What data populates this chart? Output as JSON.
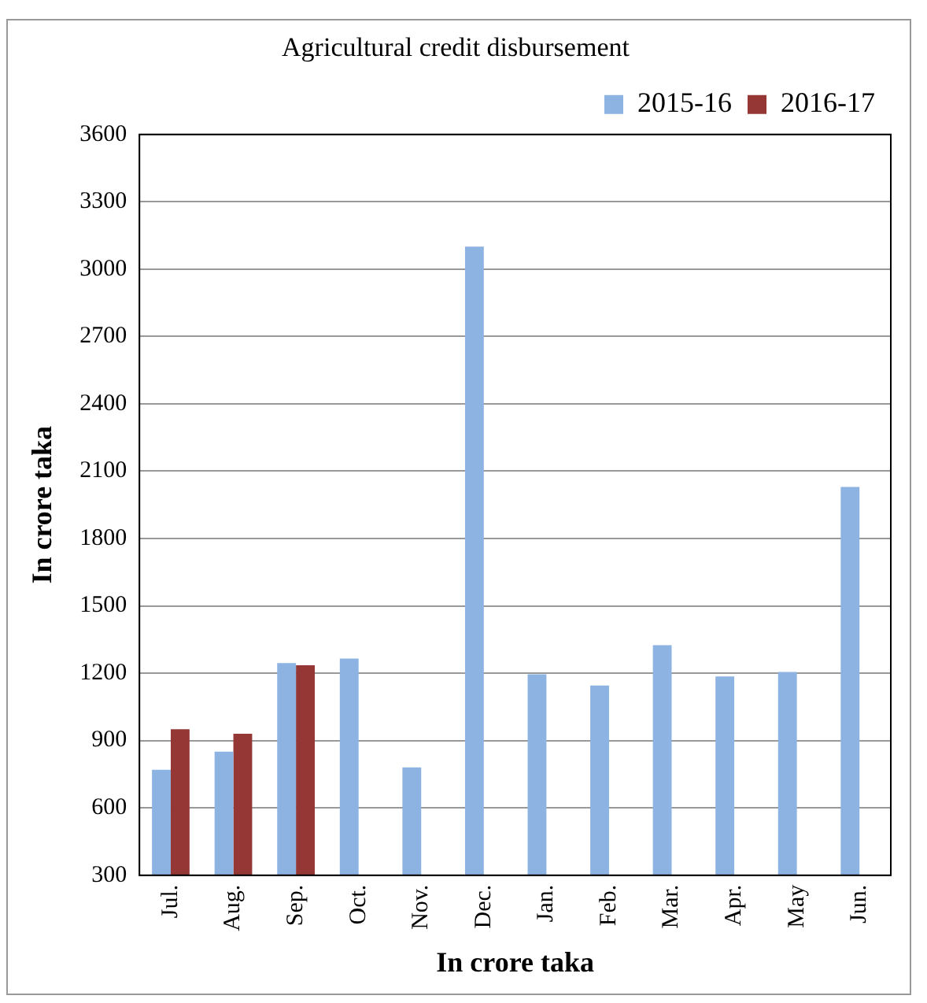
{
  "chart_data": {
    "type": "bar",
    "title": "Agricultural credit disbursement",
    "xlabel": "In crore taka",
    "ylabel": "In crore taka",
    "categories": [
      "Jul.",
      "Aug.",
      "Sep.",
      "Oct.",
      "Nov.",
      "Dec.",
      "Jan.",
      "Feb.",
      "Mar.",
      "Apr.",
      "May",
      "Jun."
    ],
    "series": [
      {
        "name": "2015-16",
        "color": "#8db3e2",
        "values": [
          770,
          850,
          1245,
          1265,
          780,
          3100,
          1195,
          1145,
          1325,
          1185,
          1205,
          2030
        ]
      },
      {
        "name": "2016-17",
        "color": "#953735",
        "values": [
          950,
          930,
          1235,
          null,
          null,
          null,
          null,
          null,
          null,
          null,
          null,
          null
        ]
      }
    ],
    "ylim": [
      300,
      3600
    ],
    "yticks": [
      300,
      600,
      900,
      1200,
      1500,
      1800,
      2100,
      2400,
      2700,
      3000,
      3300,
      3600
    ],
    "grid": "y",
    "legend": "top right"
  }
}
